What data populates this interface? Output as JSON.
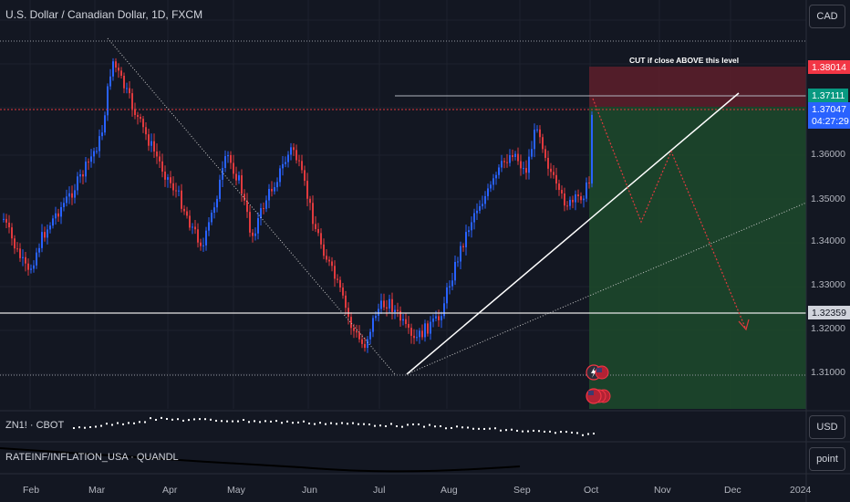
{
  "header": {
    "symbol_title": "U.S. Dollar / Canadian Dollar, 1D, FXCM"
  },
  "scale_buttons": {
    "main": "CAD",
    "pane1": "USD",
    "pane2": "point"
  },
  "price_axis": {
    "labels": [
      "1.36000",
      "1.35000",
      "1.34000",
      "1.33000",
      "1.32000",
      "1.31000"
    ],
    "tags": {
      "stop": {
        "value": "1.38014",
        "color": "#f23645"
      },
      "target_line": {
        "value": "1.37111",
        "color": "#089981"
      },
      "last_price": {
        "value": "1.37047",
        "countdown": "04:27:29",
        "color": "#2962ff"
      },
      "support": {
        "value": "1.32359",
        "color": "#d1d4dc"
      }
    }
  },
  "time_axis": {
    "labels": [
      "Feb",
      "Mar",
      "Apr",
      "May",
      "Jun",
      "Jul",
      "Aug",
      "Sep",
      "Oct",
      "Nov",
      "Dec",
      "2024"
    ]
  },
  "annotation": {
    "text": "CUT if close ABOVE this level"
  },
  "panes": {
    "zn": {
      "label": "ZN1! · CBOT"
    },
    "inflation": {
      "label": "RATEINF/INFLATION_USA · QUANDL"
    }
  },
  "colors": {
    "up": "#2962ff",
    "down": "#e03a3e",
    "background": "#131722",
    "long_zone": "#1f4d2e",
    "stop_zone": "#5c1d2a"
  },
  "icons": [
    "lightning-icon",
    "us-flag-icon"
  ]
}
